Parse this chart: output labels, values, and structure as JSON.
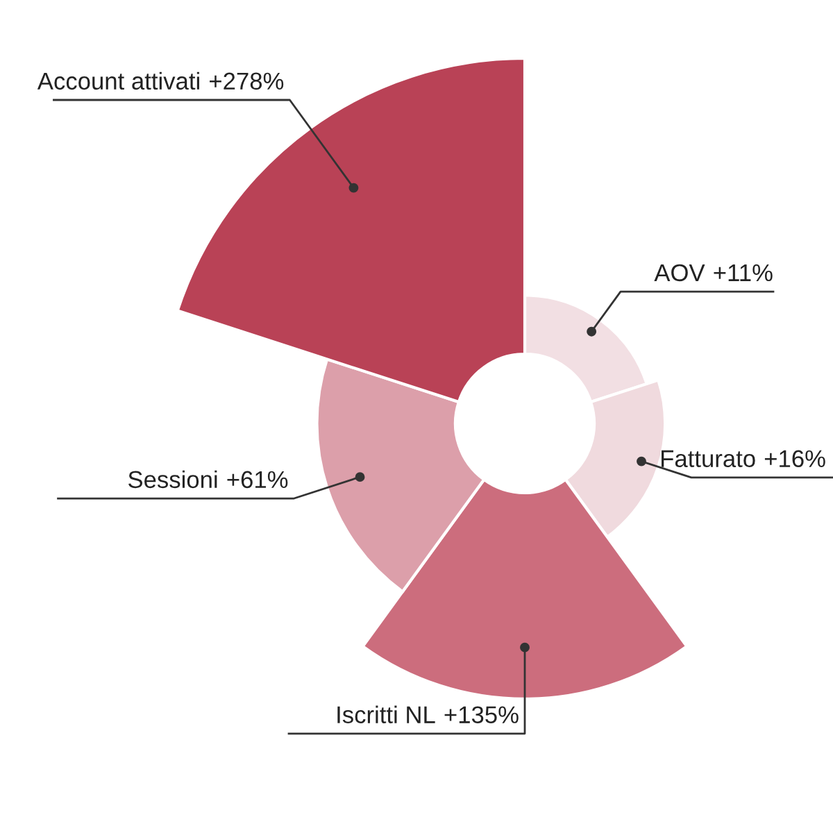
{
  "chart_data": {
    "type": "other",
    "categories": [
      "AOV",
      "Fatturato",
      "Iscritti NL",
      "Sessioni",
      "Account attivati"
    ],
    "values": [
      11,
      16,
      135,
      61,
      278
    ],
    "value_labels": [
      "+11%",
      "+16%",
      "+135%",
      "+61%",
      "+278%"
    ],
    "colors": [
      "#f2dfe3",
      "#f0dade",
      "#cc6d7d",
      "#dc9faa",
      "#b94256"
    ]
  }
}
